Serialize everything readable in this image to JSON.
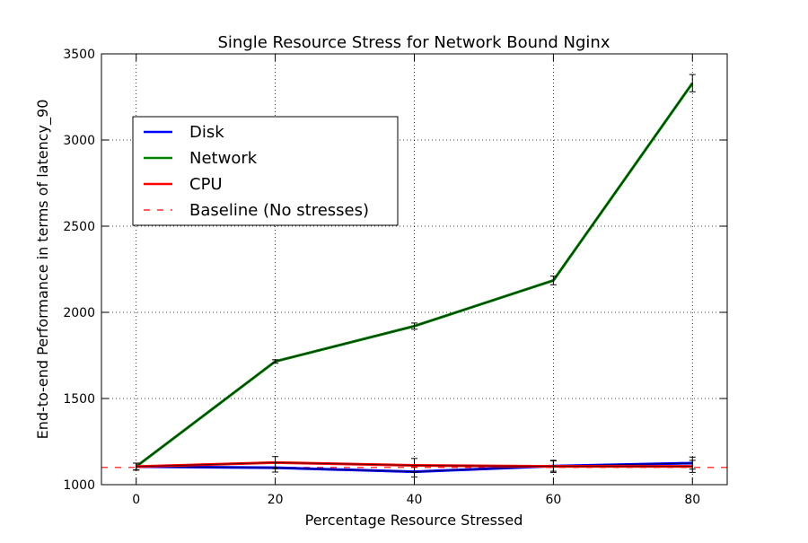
{
  "chart_data": {
    "type": "line",
    "title": "Single Resource Stress for Network Bound Nginx",
    "xlabel": "Percentage Resource Stressed",
    "ylabel": "End-to-end Performance in terms of latency_90",
    "xlim": [
      -5,
      85
    ],
    "ylim": [
      1000,
      3500
    ],
    "xticks": [
      0,
      20,
      40,
      60,
      80
    ],
    "yticks": [
      1000,
      1500,
      2000,
      2500,
      3000,
      3500
    ],
    "grid": true,
    "legend_position": "upper-left",
    "x": [
      0,
      20,
      40,
      60,
      80
    ],
    "series": [
      {
        "name": "Disk",
        "color": "#0000ff",
        "values": [
          1105,
          1098,
          1075,
          1108,
          1125
        ],
        "errors": [
          20,
          25,
          30,
          30,
          35
        ]
      },
      {
        "name": "Network",
        "color": "#008000",
        "values": [
          1105,
          1715,
          1920,
          2185,
          3330
        ],
        "errors": [
          20,
          10,
          18,
          25,
          50
        ]
      },
      {
        "name": "CPU",
        "color": "#ff0000",
        "values": [
          1105,
          1128,
          1112,
          1106,
          1106
        ],
        "errors": [
          20,
          35,
          40,
          35,
          35
        ]
      }
    ],
    "baseline": {
      "name": "Baseline (No stresses)",
      "color": "#ff0000",
      "value": 1100
    }
  }
}
